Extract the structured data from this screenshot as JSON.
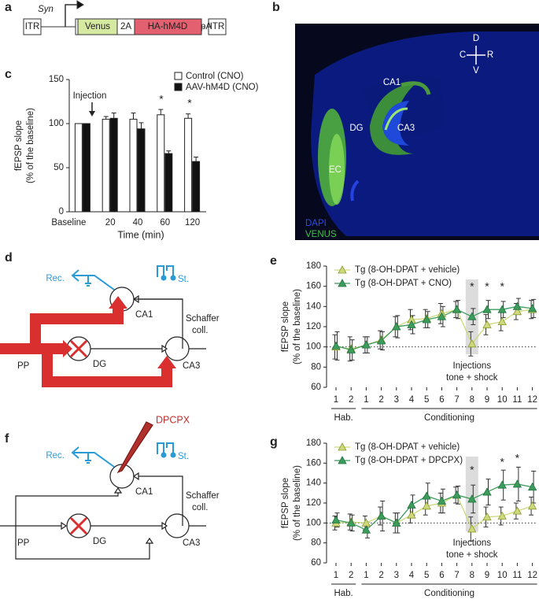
{
  "panel_labels": [
    "a",
    "b",
    "c",
    "d",
    "e",
    "f",
    "g"
  ],
  "construct": {
    "items": [
      "ITR",
      "Venus",
      "2A",
      "HA-hM4D",
      "pA",
      "ITR"
    ],
    "promoter": "Syn"
  },
  "image": {
    "axes": [
      "D",
      "C",
      "R",
      "V"
    ],
    "regions": [
      "CA1",
      "DG",
      "CA3",
      "EC"
    ],
    "stains": [
      "DAPI",
      "VENUS"
    ]
  },
  "diagram_d": {
    "labels": [
      "Rec.",
      "St.",
      "CA1",
      "Schaffer",
      "coll.",
      "PP",
      "DG",
      "CA3"
    ]
  },
  "diagram_f": {
    "labels": [
      "Rec.",
      "St.",
      "CA1",
      "Schaffer",
      "coll.",
      "PP",
      "DG",
      "CA3"
    ],
    "drug": "DPCPX"
  },
  "chart_data": [
    {
      "type": "bar",
      "ylabel": [
        "fEPSP slope",
        "(% of the baseline)"
      ],
      "xlabel": "Time (min)",
      "categories": [
        "Baseline",
        "20",
        "40",
        "60",
        "120"
      ],
      "series": [
        {
          "name": "Control (CNO)",
          "color": "#ffffff",
          "values": [
            100,
            105,
            105,
            110,
            106
          ],
          "errors": [
            0,
            3,
            7,
            6,
            5
          ]
        },
        {
          "name": "AAV-hM4D (CNO)",
          "color": "#111111",
          "values": [
            100,
            106,
            94,
            66,
            57
          ],
          "errors": [
            0,
            6,
            7,
            3,
            5
          ]
        }
      ],
      "ylim": [
        0,
        150
      ],
      "yticks": [
        0,
        50,
        100,
        150
      ],
      "annotations": [
        "Injection",
        "*",
        "*"
      ]
    },
    {
      "type": "line",
      "ylabel": [
        "fEPSP slope",
        "(% of the baseline)"
      ],
      "categories": [
        "1",
        "2",
        "1",
        "2",
        "3",
        "4",
        "5",
        "6",
        "7",
        "8",
        "9",
        "10",
        "11",
        "12"
      ],
      "groups": [
        "Hab.",
        "Conditioning"
      ],
      "series": [
        {
          "name": "Tg (8-OH-DPAT + vehicle)",
          "color": "#cdd97a",
          "values": [
            100,
            98,
            102,
            107,
            120,
            127,
            128,
            133,
            137,
            103,
            122,
            125,
            135,
            137
          ],
          "errors": [
            12,
            12,
            8,
            9,
            10,
            10,
            9,
            10,
            8,
            12,
            10,
            9,
            8,
            9
          ]
        },
        {
          "name": "Tg (8-OH-DPAT + CNO)",
          "color": "#3b9c5c",
          "values": [
            101,
            97,
            102,
            106,
            120,
            122,
            127,
            130,
            137,
            130,
            137,
            137,
            140,
            138
          ],
          "errors": [
            14,
            10,
            8,
            9,
            11,
            9,
            8,
            10,
            9,
            8,
            9,
            8,
            8,
            9
          ]
        }
      ],
      "ylim": [
        60,
        180
      ],
      "yticks": [
        60,
        80,
        100,
        120,
        140,
        160,
        180
      ],
      "hline": 100,
      "annotations": [
        "*",
        "*",
        "*",
        "Injections",
        "tone + shock"
      ]
    },
    {
      "type": "line",
      "ylabel": [
        "fEPSP slope",
        "(% of the baseline)"
      ],
      "categories": [
        "1",
        "2",
        "1",
        "2",
        "3",
        "4",
        "5",
        "6",
        "7",
        "8",
        "9",
        "10",
        "11",
        "12"
      ],
      "groups": [
        "Hab.",
        "Conditioning"
      ],
      "series": [
        {
          "name": "Tg (8-OH-DPAT + vehicle)",
          "color": "#cdd97a",
          "values": [
            100,
            101,
            100,
            107,
            100,
            108,
            117,
            120,
            128,
            94,
            106,
            107,
            112,
            117
          ],
          "errors": [
            7,
            8,
            7,
            9,
            10,
            8,
            9,
            10,
            8,
            12,
            10,
            9,
            8,
            9
          ]
        },
        {
          "name": "Tg (8-OH-DPAT + DPCPX)",
          "color": "#3b9c5c",
          "values": [
            103,
            100,
            93,
            107,
            100,
            118,
            127,
            122,
            128,
            124,
            131,
            138,
            139,
            136
          ],
          "errors": [
            7,
            8,
            8,
            15,
            10,
            10,
            13,
            12,
            9,
            14,
            13,
            15,
            17,
            16
          ]
        }
      ],
      "ylim": [
        60,
        180
      ],
      "yticks": [
        60,
        80,
        100,
        120,
        140,
        160,
        180
      ],
      "hline": 100,
      "annotations": [
        "*",
        "*",
        "*",
        "Injections",
        "tone + shock"
      ]
    }
  ]
}
